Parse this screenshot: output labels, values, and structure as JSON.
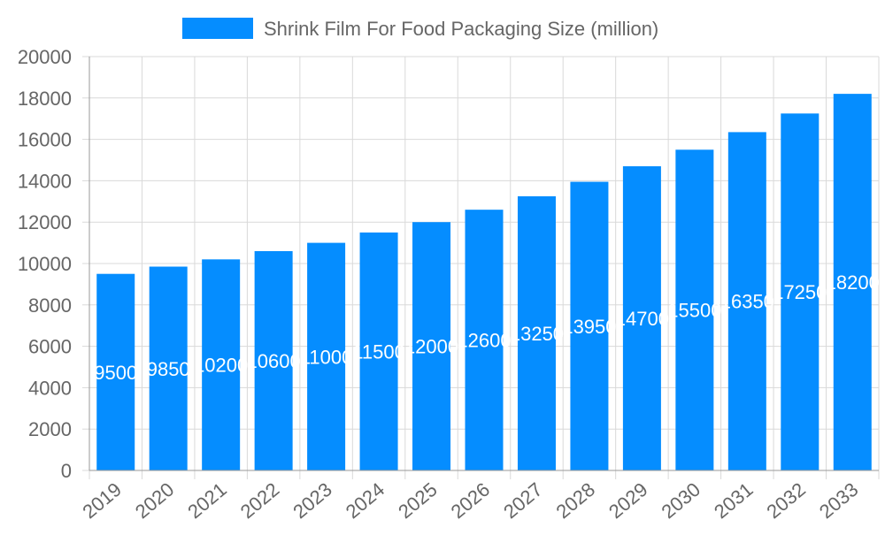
{
  "chart_data": {
    "type": "bar",
    "title": "",
    "xlabel": "",
    "ylabel": "",
    "categories": [
      "2019",
      "2020",
      "2021",
      "2022",
      "2023",
      "2024",
      "2025",
      "2026",
      "2027",
      "2028",
      "2029",
      "2030",
      "2031",
      "2032",
      "2033"
    ],
    "series": [
      {
        "name": "Shrink Film For Food Packaging Size (million)",
        "values": [
          9500,
          9850,
          10200,
          10600,
          11000,
          11500,
          12000,
          12600,
          13250,
          13950,
          14700,
          15500,
          16350,
          17250,
          18200
        ]
      }
    ],
    "ylim": [
      0,
      20000
    ],
    "yticks": [
      0,
      2000,
      4000,
      6000,
      8000,
      10000,
      12000,
      14000,
      16000,
      18000,
      20000
    ],
    "grid": true,
    "legend": "top",
    "data_labels": "inside-middle",
    "colors": {
      "bar": "#058DFF",
      "grid": "#D9D9D9",
      "axis": "#999999",
      "text": "#666666",
      "label": "#FFFFFF"
    }
  }
}
